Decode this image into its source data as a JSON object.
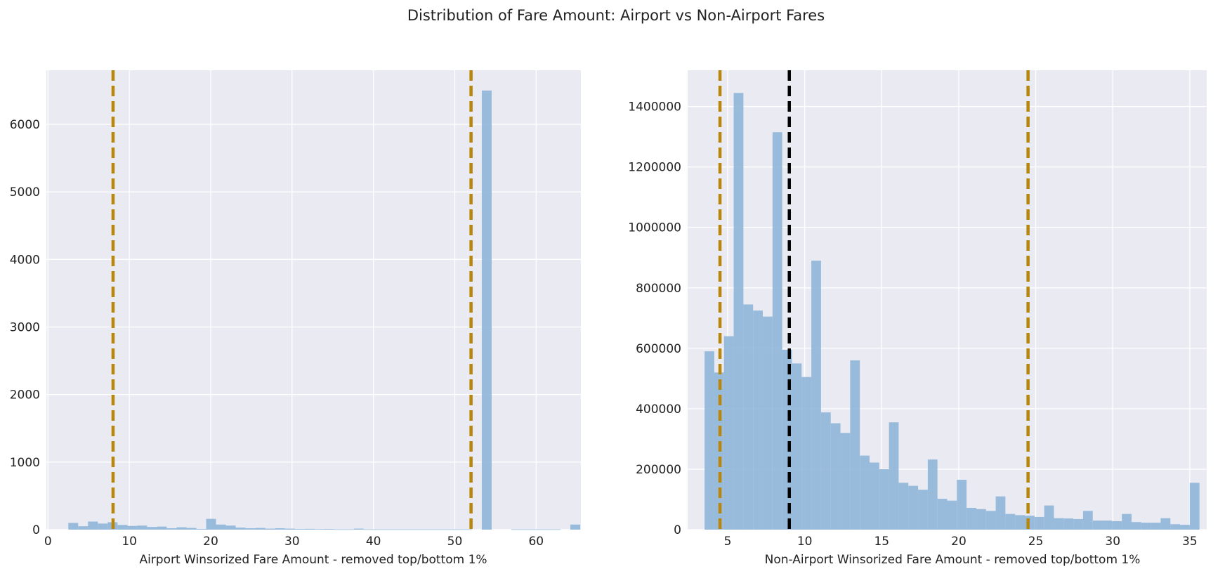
{
  "figure": {
    "title": "Distribution of Fare Amount: Airport vs Non-Airport Fares"
  },
  "colors": {
    "plot_background": "#eaeaf2",
    "grid": "#ffffff",
    "bar": "#8fb6d9",
    "percentile_line": "#b8860b",
    "median_line": "#000000"
  },
  "chart_data": [
    {
      "type": "bar",
      "subtype": "histogram",
      "xlabel": "Airport Winsorized Fare Amount - removed top/bottom 1%",
      "ylabel": "",
      "xlim": [
        -0.2,
        65.5
      ],
      "ylim": [
        0,
        6800
      ],
      "xticks": [
        0,
        10,
        20,
        30,
        40,
        50,
        60
      ],
      "xtick_labels": [
        "0",
        "10",
        "20",
        "30",
        "40",
        "50",
        "60"
      ],
      "yticks": [
        0,
        1000,
        2000,
        3000,
        4000,
        5000,
        6000
      ],
      "ytick_labels": [
        "0",
        "1000",
        "2000",
        "3000",
        "4000",
        "5000",
        "6000"
      ],
      "grid": true,
      "bin_start": 2.5,
      "bin_width": 1.21,
      "counts": [
        100,
        50,
        120,
        90,
        110,
        70,
        55,
        60,
        40,
        45,
        20,
        35,
        25,
        10,
        160,
        75,
        60,
        30,
        20,
        25,
        15,
        20,
        15,
        10,
        12,
        8,
        10,
        5,
        5,
        15,
        5,
        5,
        5,
        5,
        5,
        5,
        5,
        5,
        5,
        5,
        5,
        0,
        6500,
        0,
        0,
        5,
        5,
        5,
        5,
        5,
        0,
        75
      ],
      "vertical_lines": [
        {
          "x": 8.0,
          "style": "dashed",
          "role": "percentile"
        },
        {
          "x": 52.0,
          "style": "dashed",
          "role": "percentile"
        }
      ]
    },
    {
      "type": "bar",
      "subtype": "histogram",
      "xlabel": "Non-Airport Winsorized Fare Amount - removed top/bottom 1%",
      "ylabel": "",
      "xlim": [
        2.4,
        36.1
      ],
      "ylim": [
        0,
        1520000
      ],
      "xticks": [
        5,
        10,
        15,
        20,
        25,
        30,
        35
      ],
      "xtick_labels": [
        "5",
        "10",
        "15",
        "20",
        "25",
        "30",
        "35"
      ],
      "yticks": [
        0,
        200000,
        400000,
        600000,
        800000,
        1000000,
        1200000,
        1400000
      ],
      "ytick_labels": [
        "0",
        "200000",
        "400000",
        "600000",
        "800000",
        "1000000",
        "1200000",
        "1400000"
      ],
      "grid": true,
      "bin_start": 3.5,
      "bin_width": 0.63,
      "counts": [
        590000,
        520000,
        640000,
        1445000,
        745000,
        725000,
        705000,
        1315000,
        595000,
        550000,
        505000,
        890000,
        388000,
        352000,
        320000,
        560000,
        245000,
        222000,
        200000,
        355000,
        155000,
        145000,
        132000,
        232000,
        102000,
        96000,
        165000,
        72000,
        68000,
        62000,
        110000,
        52000,
        48000,
        46000,
        42000,
        80000,
        38000,
        37000,
        35000,
        62000,
        30000,
        30000,
        28000,
        52000,
        25000,
        23000,
        23000,
        38000,
        18000,
        16000,
        155000
      ],
      "vertical_lines": [
        {
          "x": 4.5,
          "style": "dashed",
          "role": "percentile"
        },
        {
          "x": 9.0,
          "style": "dashed",
          "role": "median"
        },
        {
          "x": 24.5,
          "style": "dashed",
          "role": "percentile"
        }
      ]
    }
  ]
}
